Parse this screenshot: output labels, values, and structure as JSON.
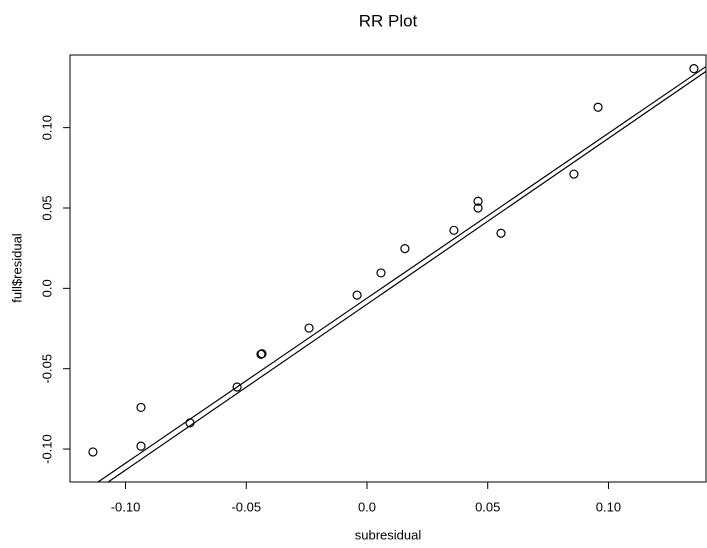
{
  "chart_data": {
    "type": "scatter",
    "title": "RR Plot",
    "x_label": "subresidual",
    "y_label": "full$residual",
    "x": [
      -0.1135,
      -0.0936,
      -0.0936,
      -0.0733,
      -0.0538,
      -0.0439,
      -0.0435,
      -0.024,
      -0.0041,
      0.0058,
      0.0157,
      0.036,
      0.046,
      0.046,
      0.0555,
      0.0857,
      0.0957,
      0.1354
    ],
    "values": [
      -0.1018,
      -0.0741,
      -0.0982,
      -0.0837,
      -0.0614,
      -0.041,
      -0.0407,
      -0.0247,
      -0.0042,
      0.0096,
      0.0247,
      0.0361,
      0.0542,
      0.05,
      0.0343,
      0.0711,
      0.1127,
      0.1367
    ],
    "color": "#000000",
    "lines": [
      {
        "x": [
          -0.1114,
          0.1404
        ],
        "y": [
          -0.1205,
          0.138
        ]
      },
      {
        "x": [
          -0.1072,
          0.1404
        ],
        "y": [
          -0.1205,
          0.135
        ]
      }
    ],
    "xlim": [
      -0.123,
      0.1404
    ],
    "ylim": [
      -0.1205,
      0.1452
    ],
    "xticks": [
      {
        "value": -0.1,
        "label": "-0.10"
      },
      -0.05,
      {
        "value": 0,
        "label": "0.0"
      },
      0.05,
      {
        "value": 0.1,
        "label": "0.10"
      }
    ],
    "yticks": [
      {
        "value": -0.1,
        "label": "-0.10"
      },
      -0.05,
      {
        "value": 0,
        "label": "0.0"
      },
      0.05,
      {
        "value": 0.1,
        "label": "0.10"
      }
    ]
  }
}
